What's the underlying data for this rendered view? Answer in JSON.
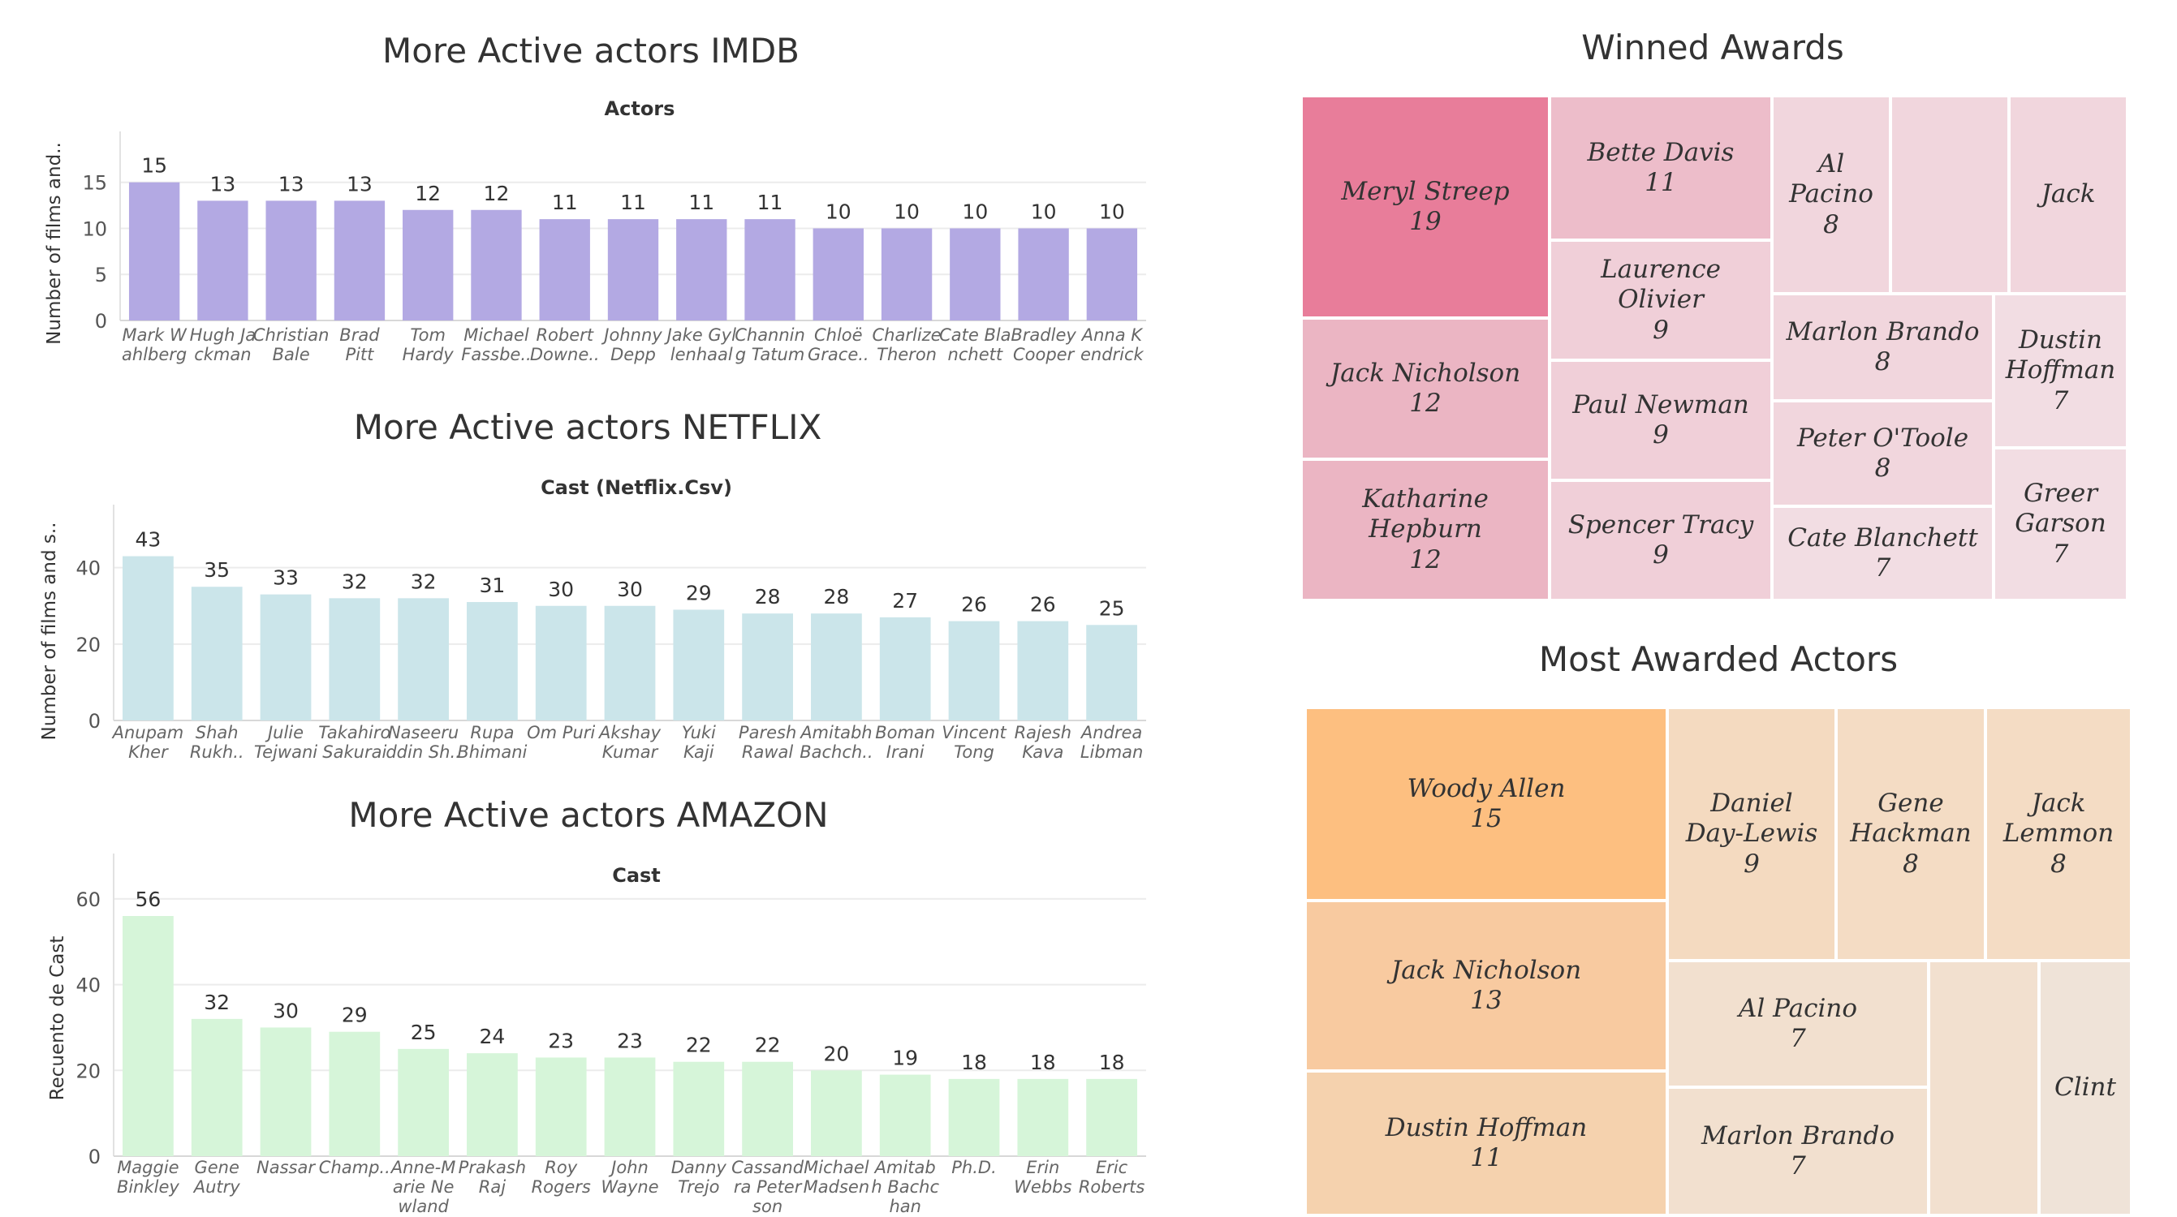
{
  "chart_data": [
    {
      "type": "bar",
      "title": "More Active actors IMDB",
      "subtitle": "Actors",
      "ylabel": "Number of films and..",
      "xlabel": "",
      "color": "#b3a9e3",
      "ylim": [
        0,
        17
      ],
      "yticks": [
        0,
        5,
        10,
        15
      ],
      "categories": [
        [
          "Mark W",
          "ahlberg"
        ],
        [
          "Hugh Ja",
          "ckman"
        ],
        [
          "Christian",
          "Bale"
        ],
        [
          "Brad",
          "Pitt"
        ],
        [
          "Tom",
          "Hardy"
        ],
        [
          "Michael",
          "Fassbe.."
        ],
        [
          "Robert",
          "Downe.."
        ],
        [
          "Johnny",
          "Depp"
        ],
        [
          "Jake Gyl",
          "lenhaal"
        ],
        [
          "Channin",
          "g Tatum"
        ],
        [
          "Chloë",
          "Grace.."
        ],
        [
          "Charlize",
          "Theron"
        ],
        [
          "Cate Bla",
          "nchett"
        ],
        [
          "Bradley",
          "Cooper"
        ],
        [
          "Anna K",
          "endrick"
        ]
      ],
      "values": [
        15,
        13,
        13,
        13,
        12,
        12,
        11,
        11,
        11,
        11,
        10,
        10,
        10,
        10,
        10
      ]
    },
    {
      "type": "bar",
      "title": "More Active actors NETFLIX",
      "subtitle": "Cast (Netflix.Csv)",
      "ylabel": "Number of films and s..",
      "xlabel": "",
      "color": "#cbe5ea",
      "ylim": [
        0,
        48
      ],
      "yticks": [
        0,
        20,
        40
      ],
      "categories": [
        [
          "Anupam",
          "Kher"
        ],
        [
          "Shah",
          "Rukh.."
        ],
        [
          "Julie",
          "Tejwani"
        ],
        [
          "Takahiro",
          "Sakurai"
        ],
        [
          "Naseeru",
          "ddin Sh.."
        ],
        [
          "Rupa",
          "Bhimani"
        ],
        [
          "Om Puri"
        ],
        [
          "Akshay",
          "Kumar"
        ],
        [
          "Yuki",
          "Kaji"
        ],
        [
          "Paresh",
          "Rawal"
        ],
        [
          "Amitabh",
          "Bachch.."
        ],
        [
          "Boman",
          "Irani"
        ],
        [
          "Vincent",
          "Tong"
        ],
        [
          "Rajesh",
          "Kava"
        ],
        [
          "Andrea",
          "Libman"
        ]
      ],
      "values": [
        43,
        35,
        33,
        32,
        32,
        31,
        30,
        30,
        29,
        28,
        28,
        27,
        26,
        26,
        25
      ]
    },
    {
      "type": "bar",
      "title": "More Active actors AMAZON",
      "subtitle": "Cast",
      "ylabel": "Recuento de Cast",
      "xlabel": "",
      "color": "#d6f5d9",
      "ylim": [
        0,
        63
      ],
      "yticks": [
        0,
        20,
        40,
        60
      ],
      "categories": [
        [
          "Maggie",
          "Binkley"
        ],
        [
          "Gene",
          "Autry"
        ],
        [
          "Nassar"
        ],
        [
          "Champ.."
        ],
        [
          "Anne-M",
          "arie Ne",
          "wland"
        ],
        [
          "Prakash",
          "Raj"
        ],
        [
          "Roy",
          "Rogers"
        ],
        [
          "John",
          "Wayne"
        ],
        [
          "Danny",
          "Trejo"
        ],
        [
          "Cassand",
          "ra Peter",
          "son"
        ],
        [
          "Michael",
          "Madsen"
        ],
        [
          "Amitab",
          "h Bachc",
          "han"
        ],
        [
          "Ph.D."
        ],
        [
          "Erin",
          "Webbs"
        ],
        [
          "Eric",
          "Roberts"
        ]
      ],
      "values": [
        56,
        32,
        30,
        29,
        25,
        24,
        23,
        23,
        22,
        22,
        20,
        19,
        18,
        18,
        18
      ]
    },
    {
      "type": "treemap",
      "title": "Winned Awards",
      "entries": [
        {
          "name": "Meryl Streep",
          "value": 19,
          "color": "#e87d9a"
        },
        {
          "name": "Jack Nicholson",
          "value": 12,
          "color": "#ebb5c3"
        },
        {
          "name": "Katharine Hepburn",
          "value": 12,
          "color": "#ebb5c3"
        },
        {
          "name": "Bette Davis",
          "value": 11,
          "color": "#edbdca"
        },
        {
          "name": "Laurence Olivier",
          "value": 9,
          "color": "#f0cfd8"
        },
        {
          "name": "Paul Newman",
          "value": 9,
          "color": "#f0cfd8"
        },
        {
          "name": "Spencer Tracy",
          "value": 9,
          "color": "#f0cfd8"
        },
        {
          "name": "Al Pacino",
          "value": 8,
          "color": "#f1d6dd"
        },
        {
          "name": "",
          "value": null,
          "color": "#f1d6dd"
        },
        {
          "name": "Jack",
          "value": null,
          "color": "#f1d6dd"
        },
        {
          "name": "Marlon Brando",
          "value": 8,
          "color": "#f1d6dd"
        },
        {
          "name": "Peter O'Toole",
          "value": 8,
          "color": "#f1d6dd"
        },
        {
          "name": "Cate Blanchett",
          "value": 7,
          "color": "#f2dde3"
        },
        {
          "name": "Dustin Hoffman",
          "value": 7,
          "color": "#f2dde3"
        },
        {
          "name": "Greer Garson",
          "value": 7,
          "color": "#f2dde3"
        }
      ]
    },
    {
      "type": "treemap",
      "title": "Most Awarded Actors",
      "entries": [
        {
          "name": "Woody Allen",
          "value": 15,
          "color": "#fdbf80"
        },
        {
          "name": "Jack Nicholson",
          "value": 13,
          "color": "#f8caa0"
        },
        {
          "name": "Dustin Hoffman",
          "value": 11,
          "color": "#f5d2ae"
        },
        {
          "name": "Daniel Day-Lewis",
          "value": 9,
          "color": "#f4dac0"
        },
        {
          "name": "Gene Hackman",
          "value": 8,
          "color": "#f4dcc4"
        },
        {
          "name": "Jack Lemmon",
          "value": 8,
          "color": "#f4dcc4"
        },
        {
          "name": "Al Pacino",
          "value": 7,
          "color": "#f2e0cf"
        },
        {
          "name": "Marlon Brando",
          "value": 7,
          "color": "#f2e0cf"
        },
        {
          "name": "",
          "value": null,
          "color": "#f2e0cf"
        },
        {
          "name": "Clint",
          "value": null,
          "color": "#efe3d8"
        }
      ]
    }
  ]
}
